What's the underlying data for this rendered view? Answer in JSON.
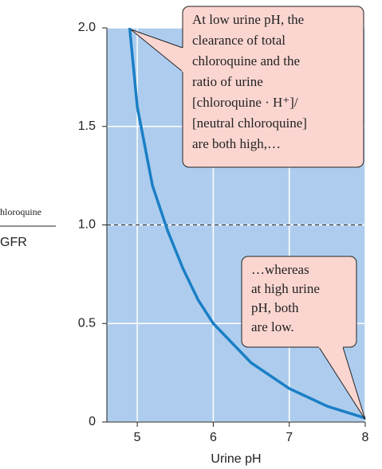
{
  "chart_data": {
    "type": "line",
    "ylabel_numerator": "hloroquine",
    "ylabel_denominator": "GFR",
    "xlabel": "Urine pH",
    "x": [
      4.9,
      5.0,
      5.2,
      5.4,
      5.6,
      5.8,
      6.0,
      6.5,
      7.0,
      7.5,
      8.0
    ],
    "series": [
      {
        "color": "#1b7fc6",
        "values": [
          2.0,
          1.6,
          1.2,
          0.97,
          0.78,
          0.62,
          0.5,
          0.3,
          0.17,
          0.08,
          0.02
        ]
      }
    ],
    "xlim": [
      4.6,
      8.0
    ],
    "xticks": [
      5,
      6,
      7,
      8
    ],
    "ylim": [
      0,
      2.0
    ],
    "yticks": [
      0,
      0.5,
      {
        "value": 1,
        "label": "1.0"
      },
      1.5,
      {
        "value": 2,
        "label": "2.0"
      }
    ],
    "reference_line": 1,
    "grid": true,
    "background": "#aecdee",
    "annotations": [
      {
        "lines": [
          "At low urine pH, the",
          "clearance of total",
          "chloroquine and the",
          "ratio of urine",
          "[chloroquine · H⁺]/",
          "[neutral chloroquine]",
          "are both high,…"
        ]
      },
      {
        "lines": [
          "…whereas",
          "at high urine",
          "pH, both",
          "are low."
        ]
      }
    ]
  }
}
